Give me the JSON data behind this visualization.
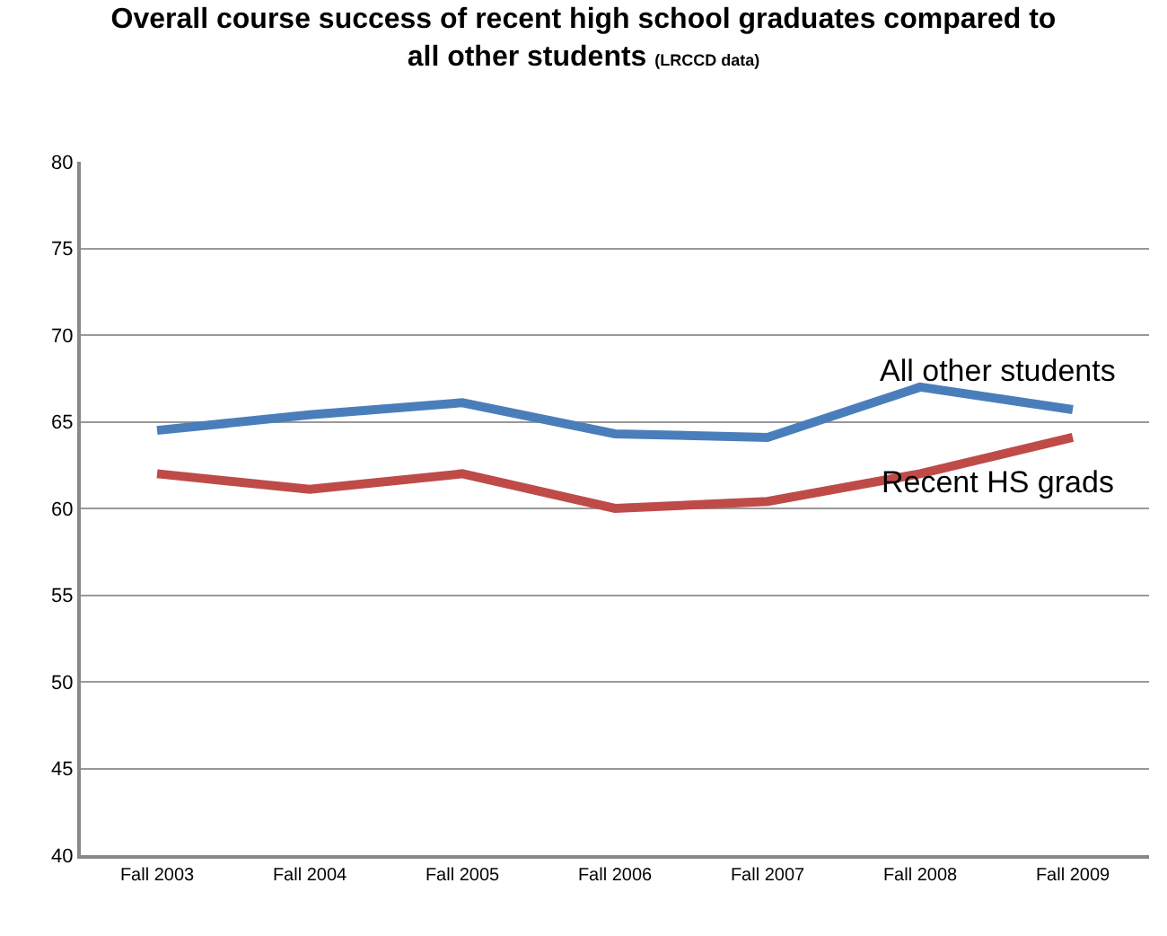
{
  "chart_data": {
    "type": "line",
    "title": "Overall course success of recent high school graduates compared to all other students",
    "subtitle": "(LRCCD data)",
    "categories": [
      "Fall 2003",
      "Fall 2004",
      "Fall 2005",
      "Fall 2006",
      "Fall 2007",
      "Fall 2008",
      "Fall 2009"
    ],
    "series": [
      {
        "name": "All other students",
        "color": "#4a7ebb",
        "values": [
          64.5,
          65.4,
          66.1,
          64.3,
          64.1,
          67.0,
          65.7
        ]
      },
      {
        "name": "Recent HS grads",
        "color": "#be4b48",
        "values": [
          62.0,
          61.1,
          62.0,
          60.0,
          60.4,
          62.0,
          64.1
        ]
      }
    ],
    "ylim": [
      40,
      80
    ],
    "yticks": [
      40,
      45,
      50,
      55,
      60,
      65,
      70,
      75,
      80
    ],
    "grid": "y",
    "legend": false,
    "marker": "none",
    "line_style": "solid"
  }
}
